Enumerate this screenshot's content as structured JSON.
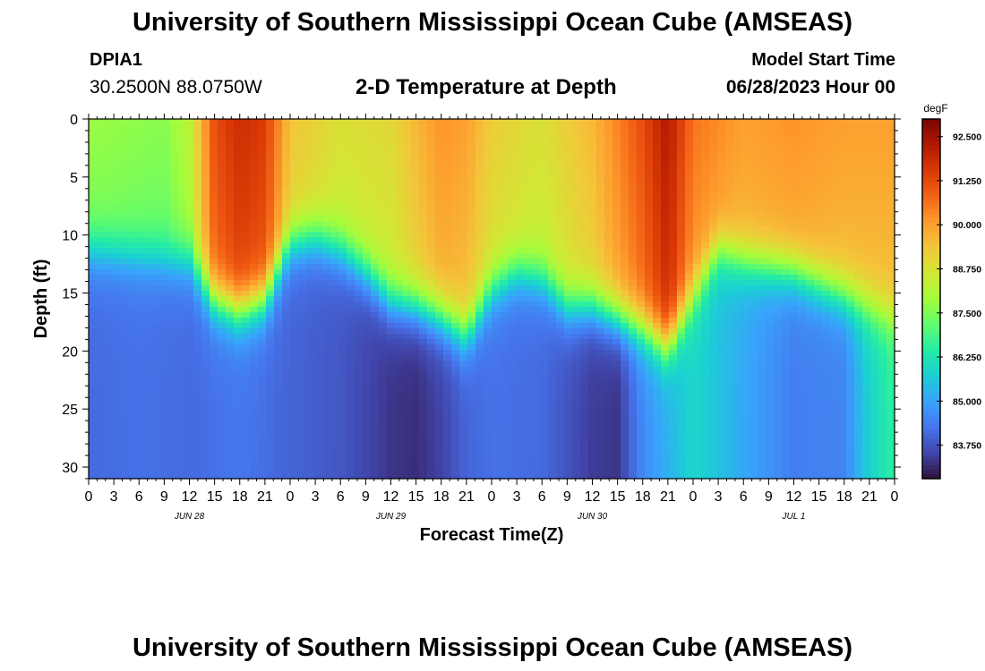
{
  "header": {
    "title": "University of Southern Mississippi Ocean Cube (AMSEAS)",
    "station_id": "DPIA1",
    "coordinates": "30.2500N  88.0750W",
    "subtitle": "2-D Temperature at Depth",
    "model_start_label": "Model Start Time",
    "model_start_value": "06/28/2023 Hour 00"
  },
  "footer": {
    "title": "University of Southern Mississippi Ocean Cube (AMSEAS)"
  },
  "chart_data": {
    "type": "heatmap",
    "title": "2-D Temperature at Depth",
    "xlabel": "Forecast Time(Z)",
    "ylabel": "Depth (ft)",
    "x_tick_labels": [
      "0",
      "3",
      "6",
      "9",
      "12",
      "15",
      "18",
      "21",
      "0",
      "3",
      "6",
      "9",
      "12",
      "15",
      "18",
      "21",
      "0",
      "3",
      "6",
      "9",
      "12",
      "15",
      "18",
      "21",
      "0",
      "3",
      "6",
      "9",
      "12",
      "15",
      "18",
      "21",
      "0"
    ],
    "date_labels": [
      {
        "label": "JUN 28",
        "hour": 12
      },
      {
        "label": "JUN 29",
        "hour": 36
      },
      {
        "label": "JUN 30",
        "hour": 60
      },
      {
        "label": "JUL 1",
        "hour": 84
      }
    ],
    "xlim": [
      0,
      96
    ],
    "ylim": [
      0,
      31
    ],
    "y_ticks": [
      0,
      5,
      10,
      15,
      20,
      25,
      30
    ],
    "y_tick_labels": [
      "0",
      "5",
      "10",
      "15",
      "20",
      "25",
      "30"
    ],
    "colorbar": {
      "units": "degF",
      "range": [
        82.8,
        93.0
      ],
      "tick_values": [
        92.5,
        91.25,
        90.0,
        88.75,
        87.5,
        86.25,
        85.0,
        83.75
      ],
      "tick_labels": [
        "92.500",
        "91.250",
        "90.000",
        "88.750",
        "87.500",
        "86.250",
        "85.000",
        "83.750"
      ],
      "colormap": [
        "#30123b",
        "#4145ab",
        "#4675ed",
        "#39a2fc",
        "#1bcfd4",
        "#24eca6",
        "#61fc6c",
        "#a4fc3b",
        "#d1e834",
        "#f3c63a",
        "#fe9b2d",
        "#f36315",
        "#d93806",
        "#b11901",
        "#7a0402"
      ]
    },
    "series": [
      {
        "name": "mixed_layer_depth_ft",
        "hours": [
          0,
          12,
          15,
          18,
          21,
          24,
          27,
          30,
          33,
          36,
          39,
          42,
          45,
          48,
          51,
          54,
          57,
          60,
          63,
          66,
          69,
          72,
          75,
          78,
          81,
          84,
          87,
          90,
          93,
          96
        ],
        "values": [
          11,
          12,
          15.5,
          16.5,
          15.5,
          10.5,
          10,
          11,
          13,
          15.5,
          16,
          17,
          18.5,
          14.5,
          13,
          13.5,
          16,
          16,
          17,
          18,
          19.5,
          15,
          11,
          12,
          12.5,
          13,
          14,
          15,
          16,
          17
        ]
      },
      {
        "name": "surface_temperature_degF",
        "hours": [
          0,
          9,
          12,
          15,
          18,
          21,
          24,
          30,
          36,
          42,
          45,
          48,
          54,
          60,
          66,
          69,
          72,
          78,
          84,
          90,
          96
        ],
        "values": [
          87.8,
          87.6,
          88.3,
          91.2,
          91.8,
          91.5,
          89.4,
          88.8,
          89.0,
          90.2,
          90.0,
          89.2,
          88.8,
          89.6,
          91.2,
          92.3,
          90.6,
          90.0,
          90.2,
          90.0,
          90.0
        ]
      },
      {
        "name": "bottom_temperature_degF",
        "hours": [
          0,
          6,
          12,
          15,
          18,
          24,
          30,
          36,
          39,
          42,
          45,
          48,
          54,
          60,
          63,
          66,
          72,
          78,
          84,
          90,
          93,
          96
        ],
        "values": [
          84.1,
          84.2,
          84.1,
          84.2,
          84.3,
          84.0,
          83.8,
          83.3,
          83.2,
          83.5,
          84.0,
          84.2,
          84.1,
          83.4,
          83.3,
          84.6,
          85.9,
          85.1,
          84.4,
          84.5,
          85.8,
          86.6
        ]
      }
    ]
  }
}
